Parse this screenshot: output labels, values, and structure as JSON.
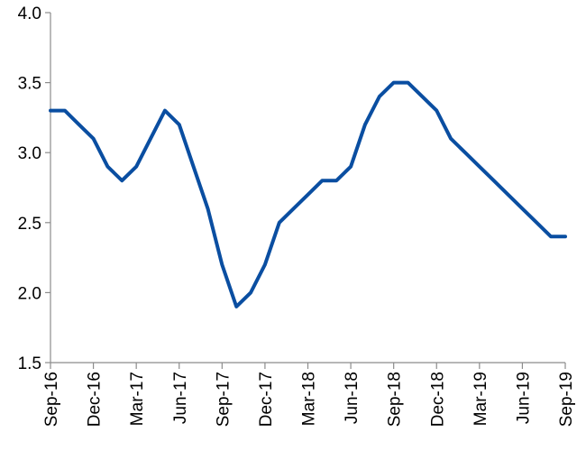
{
  "chart_data": {
    "type": "line",
    "title": "",
    "xlabel": "",
    "ylabel": "",
    "ylim": [
      1.5,
      4.0
    ],
    "yticks": [
      "1.5",
      "2.0",
      "2.5",
      "3.0",
      "3.5",
      "4.0"
    ],
    "xticks": [
      "Sep-16",
      "Dec-16",
      "Mar-17",
      "Jun-17",
      "Sep-17",
      "Dec-17",
      "Mar-18",
      "Jun-18",
      "Sep-18",
      "Dec-18",
      "Mar-19",
      "Jun-19",
      "Sep-19"
    ],
    "grid": false,
    "legend": "none",
    "series": [
      {
        "color": "#0a4ea1",
        "x": [
          "2016-09",
          "2016-10",
          "2016-11",
          "2016-12",
          "2017-01",
          "2017-02",
          "2017-03",
          "2017-04",
          "2017-05",
          "2017-06",
          "2017-07",
          "2017-08",
          "2017-09",
          "2017-10",
          "2017-11",
          "2017-12",
          "2018-01",
          "2018-02",
          "2018-03",
          "2018-04",
          "2018-05",
          "2018-06",
          "2018-07",
          "2018-08",
          "2018-09",
          "2018-10",
          "2018-11",
          "2018-12",
          "2019-01",
          "2019-02",
          "2019-03",
          "2019-04",
          "2019-05",
          "2019-06",
          "2019-07",
          "2019-08",
          "2019-09"
        ],
        "values": [
          3.3,
          3.3,
          3.2,
          3.1,
          2.9,
          2.8,
          2.9,
          3.1,
          3.3,
          3.2,
          2.9,
          2.6,
          2.2,
          1.9,
          2.0,
          2.2,
          2.5,
          2.6,
          2.7,
          2.8,
          2.8,
          2.9,
          3.2,
          3.4,
          3.5,
          3.5,
          3.4,
          3.3,
          3.1,
          3.0,
          2.9,
          2.8,
          2.7,
          2.6,
          2.5,
          2.4,
          2.4
        ]
      }
    ]
  }
}
